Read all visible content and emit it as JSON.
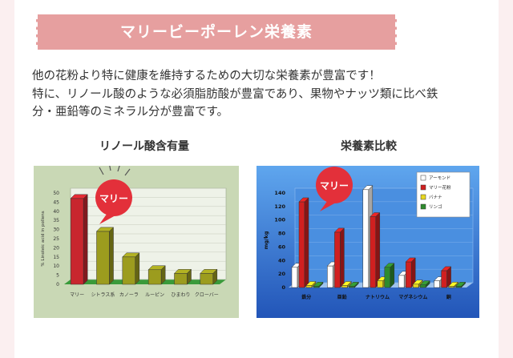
{
  "section": {
    "title": "マリービーポーレン栄養素"
  },
  "description": {
    "lines": [
      "他の花粉より特に健康を維持するための大切な栄養素が豊富です！",
      "特に、リノール酸のような必須脂肪酸が豊富であり、果物やナッツ類に比べ鉄",
      "分・亜鉛等のミネラル分が豊富です。"
    ]
  },
  "colors": {
    "banner": "#e69f9f",
    "highlight_bubble": "#e3303a",
    "left_panel_bg": "#c9d8b5",
    "right_panel_bg": "#2f6fd0"
  },
  "chart_data": [
    {
      "type": "bar",
      "title": "リノール酸含有量",
      "ylabel": "% Linoleic acid in pollens",
      "categories": [
        "マリー",
        "シトラス系",
        "カノーラ",
        "ルーピン",
        "ひまわり",
        "クローバー"
      ],
      "values": [
        47,
        29,
        15,
        8,
        6,
        6
      ],
      "ylim": [
        0,
        50
      ],
      "ticks": [
        "0",
        "5",
        "10",
        "15",
        "20",
        "25",
        "30",
        "35",
        "40",
        "45",
        "50"
      ],
      "callout": "マリー",
      "colors": [
        "#c8262e",
        "#9c9c1e",
        "#9c9c1e",
        "#9c9c1e",
        "#9c9c1e",
        "#9c9c1e"
      ]
    },
    {
      "type": "bar",
      "title": "栄養素比較",
      "ylabel": "mg/kg",
      "categories": [
        "鉄分",
        "亜鉛",
        "ナトリウム",
        "マグネシウム",
        "銅"
      ],
      "ylim": [
        0,
        140
      ],
      "ticks": [
        "0",
        "20",
        "40",
        "60",
        "80",
        "100",
        "120",
        "140"
      ],
      "callout": "マリー",
      "series": [
        {
          "name": "アーモンド",
          "values": [
            30,
            32,
            145,
            18,
            10
          ],
          "color": "#ffffff"
        },
        {
          "name": "マリー花粉",
          "values": [
            127,
            82,
            105,
            38,
            25
          ],
          "color": "#d02020"
        },
        {
          "name": "バナナ",
          "values": [
            3,
            3,
            10,
            5,
            2
          ],
          "color": "#e8d820"
        },
        {
          "name": "リンゴ",
          "values": [
            2,
            2,
            30,
            4,
            2
          ],
          "color": "#2e8b2e"
        }
      ]
    }
  ]
}
